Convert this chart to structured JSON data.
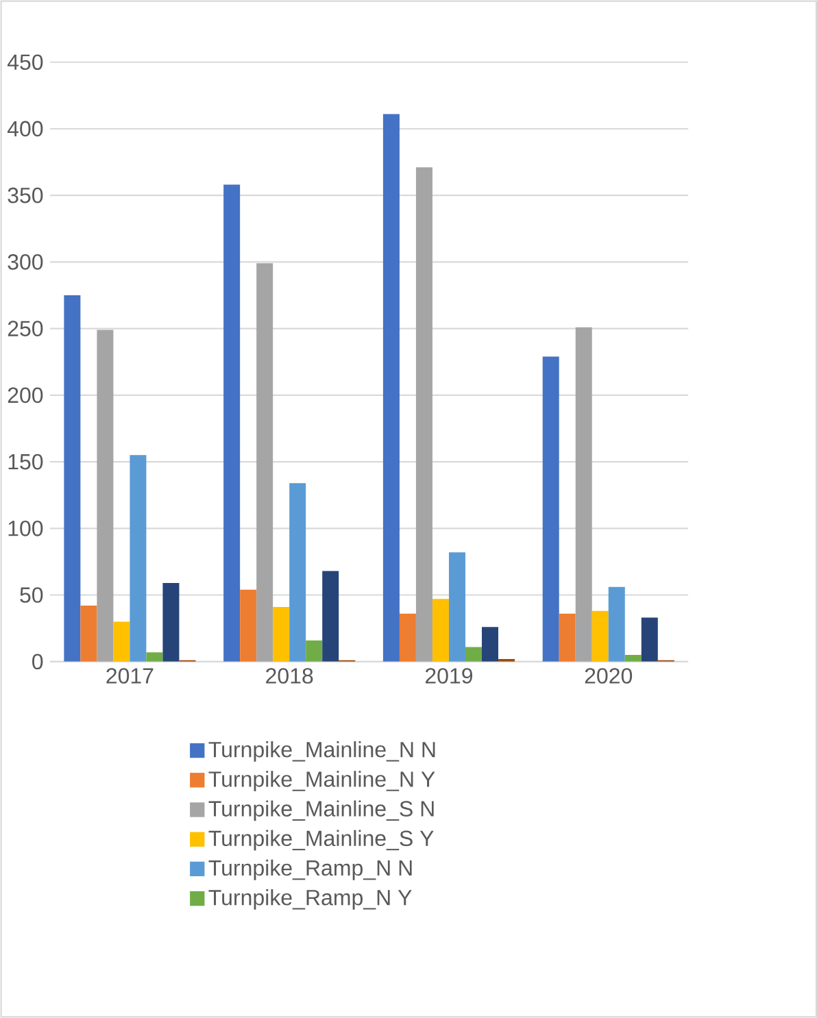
{
  "chart_data": {
    "type": "bar",
    "categories": [
      "2017",
      "2018",
      "2019",
      "2020"
    ],
    "series": [
      {
        "name": "Turnpike_Mainline_N N",
        "color": "#4472c4",
        "values": [
          275,
          358,
          411,
          229
        ]
      },
      {
        "name": "Turnpike_Mainline_N Y",
        "color": "#ed7d31",
        "values": [
          42,
          54,
          36,
          36
        ]
      },
      {
        "name": "Turnpike_Mainline_S N",
        "color": "#a5a5a5",
        "values": [
          249,
          299,
          371,
          251
        ]
      },
      {
        "name": "Turnpike_Mainline_S Y",
        "color": "#ffc000",
        "values": [
          30,
          41,
          47,
          38
        ]
      },
      {
        "name": "Turnpike_Ramp_N N",
        "color": "#5b9bd5",
        "values": [
          155,
          134,
          82,
          56
        ]
      },
      {
        "name": "Turnpike_Ramp_N Y",
        "color": "#70ad47",
        "values": [
          7,
          16,
          11,
          5
        ]
      },
      {
        "color": "#264478",
        "values": [
          59,
          68,
          26,
          33
        ]
      },
      {
        "color": "#9e480e",
        "values": [
          1,
          1,
          2,
          1
        ]
      }
    ],
    "ylim": [
      0,
      450
    ],
    "yticks": [
      0,
      50,
      100,
      150,
      200,
      250,
      300,
      350,
      400,
      450
    ],
    "grid": "y",
    "legend": "bottom"
  }
}
